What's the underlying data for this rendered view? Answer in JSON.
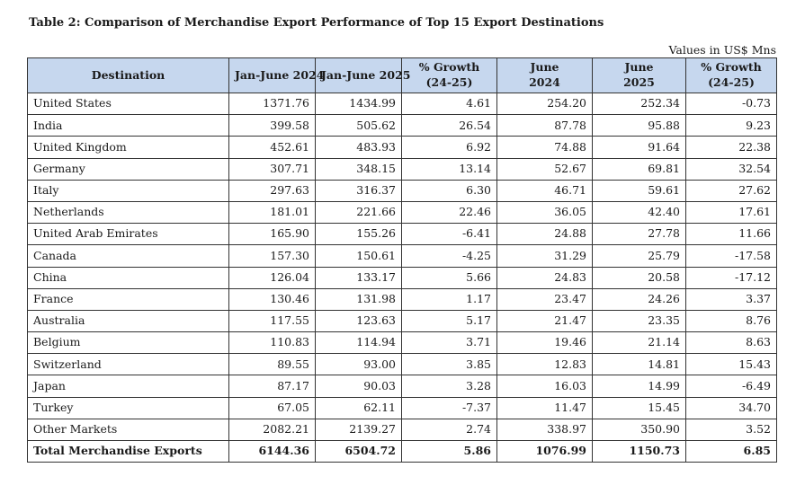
{
  "title": "Table 2: Comparison of Merchandise Export Performance of Top 15 Export Destinations",
  "units_note": "Values in US$ Mns",
  "table": {
    "headers": [
      {
        "line1": "Destination",
        "line2": ""
      },
      {
        "line1": "Jan-June 2024",
        "line2": ""
      },
      {
        "line1": "Jan-June 2025",
        "line2": ""
      },
      {
        "line1": "% Growth",
        "line2": "(24-25)"
      },
      {
        "line1": "June",
        "line2": "2024"
      },
      {
        "line1": "June",
        "line2": "2025"
      },
      {
        "line1": "% Growth",
        "line2": "(24-25)"
      }
    ],
    "rows": [
      [
        "United States",
        "1371.76",
        "1434.99",
        "4.61",
        "254.20",
        "252.34",
        "-0.73"
      ],
      [
        "India",
        "399.58",
        "505.62",
        "26.54",
        "87.78",
        "95.88",
        "9.23"
      ],
      [
        "United Kingdom",
        "452.61",
        "483.93",
        "6.92",
        "74.88",
        "91.64",
        "22.38"
      ],
      [
        "Germany",
        "307.71",
        "348.15",
        "13.14",
        "52.67",
        "69.81",
        "32.54"
      ],
      [
        "Italy",
        "297.63",
        "316.37",
        "6.30",
        "46.71",
        "59.61",
        "27.62"
      ],
      [
        "Netherlands",
        "181.01",
        "221.66",
        "22.46",
        "36.05",
        "42.40",
        "17.61"
      ],
      [
        "United Arab Emirates",
        "165.90",
        "155.26",
        "-6.41",
        "24.88",
        "27.78",
        "11.66"
      ],
      [
        "Canada",
        "157.30",
        "150.61",
        "-4.25",
        "31.29",
        "25.79",
        "-17.58"
      ],
      [
        "China",
        "126.04",
        "133.17",
        "5.66",
        "24.83",
        "20.58",
        "-17.12"
      ],
      [
        "France",
        "130.46",
        "131.98",
        "1.17",
        "23.47",
        "24.26",
        "3.37"
      ],
      [
        "Australia",
        "117.55",
        "123.63",
        "5.17",
        "21.47",
        "23.35",
        "8.76"
      ],
      [
        "Belgium",
        "110.83",
        "114.94",
        "3.71",
        "19.46",
        "21.14",
        "8.63"
      ],
      [
        "Switzerland",
        "89.55",
        "93.00",
        "3.85",
        "12.83",
        "14.81",
        "15.43"
      ],
      [
        "Japan",
        "87.17",
        "90.03",
        "3.28",
        "16.03",
        "14.99",
        "-6.49"
      ],
      [
        "Turkey",
        "67.05",
        "62.11",
        "-7.37",
        "11.47",
        "15.45",
        "34.70"
      ],
      [
        "Other Markets",
        "2082.21",
        "2139.27",
        "2.74",
        "338.97",
        "350.90",
        "3.52"
      ]
    ],
    "total": [
      "Total Merchandise Exports",
      "6144.36",
      "6504.72",
      "5.86",
      "1076.99",
      "1150.73",
      "6.85"
    ]
  },
  "colors": {
    "header_bg": "#c6d7ee",
    "border": "#333333",
    "text": "#1a1a1a"
  }
}
